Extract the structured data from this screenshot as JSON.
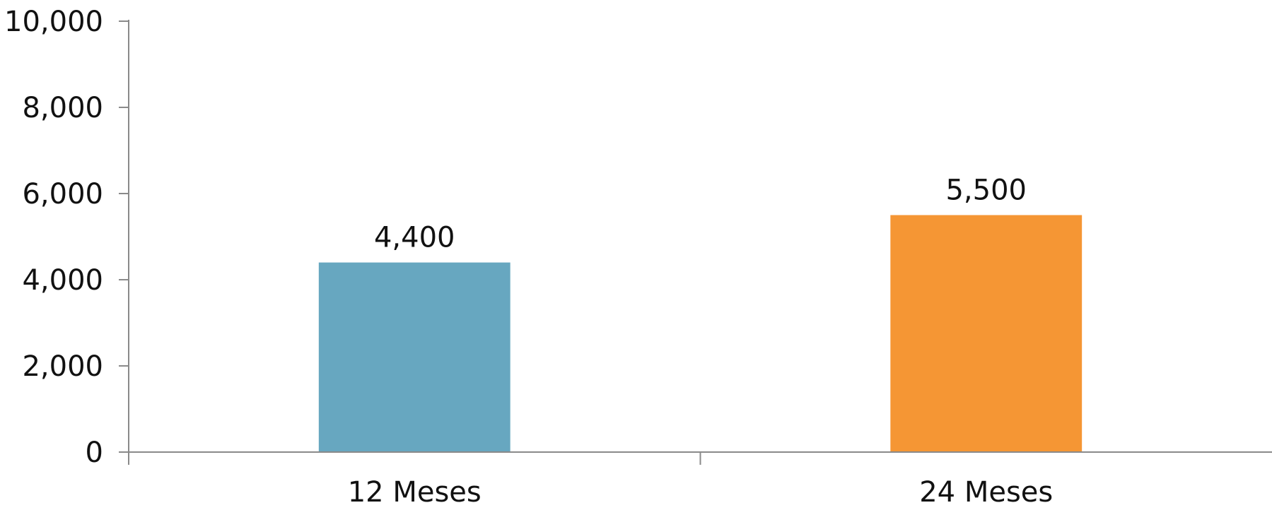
{
  "chart_data": {
    "type": "bar",
    "categories": [
      "12 Meses",
      "24 Meses"
    ],
    "values": [
      4400,
      5500
    ],
    "data_labels": [
      "4,400",
      "5,500"
    ],
    "bar_colors": [
      "#67a7c0",
      "#f59634"
    ],
    "ylim": [
      0,
      10000
    ],
    "yticks": [
      0,
      2000,
      4000,
      6000,
      8000,
      10000
    ],
    "ytick_labels": [
      "0",
      "2,000",
      "4,000",
      "6,000",
      "8,000",
      "10,000"
    ],
    "grid": false,
    "legend": "none",
    "axis_color": "#8a8a8a",
    "text_color": "#111111"
  }
}
